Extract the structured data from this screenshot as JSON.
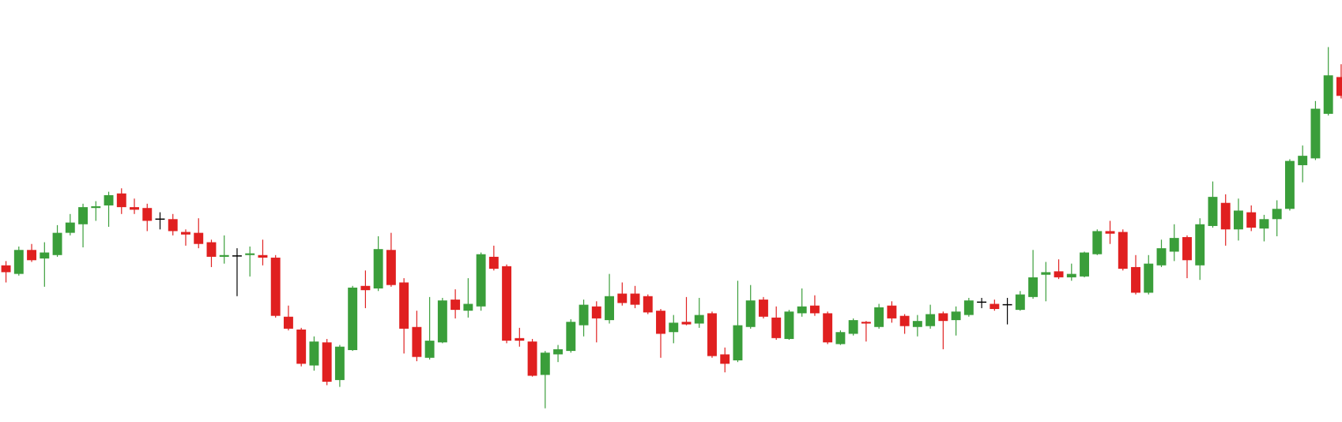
{
  "chart_data": {
    "type": "candlestick",
    "up_color": "#3a9e3a",
    "down_color": "#e02020",
    "flat_color": "#000000",
    "ylim": [
      0,
      493
    ],
    "open": [
      183,
      173,
      201,
      191,
      195,
      221,
      231,
      250,
      253,
      267,
      251,
      250,
      237,
      237,
      222,
      221,
      210,
      193,
      194,
      195,
      195,
      192,
      123,
      108,
      66,
      93,
      49,
      84,
      159,
      156,
      201,
      163,
      111,
      75,
      93,
      143,
      130,
      135,
      193,
      182,
      98,
      94,
      55,
      79,
      83,
      113,
      135,
      119,
      150,
      150,
      147,
      130,
      105,
      117,
      115,
      127,
      79,
      72,
      111,
      143,
      122,
      97,
      127,
      136,
      127,
      91,
      103,
      117,
      111,
      136,
      124,
      111,
      112,
      127,
      119,
      125,
      140,
      138,
      137,
      131,
      146,
      172,
      176,
      169,
      170,
      196,
      223,
      222,
      181,
      151,
      183,
      199,
      216,
      183,
      229,
      256,
      225,
      245,
      226,
      237,
      249,
      300,
      308,
      360,
      403
    ],
    "high": [
      188,
      205,
      208,
      210,
      230,
      243,
      255,
      258,
      269,
      273,
      261,
      255,
      245,
      243,
      225,
      238,
      213,
      218,
      203,
      205,
      213,
      195,
      136,
      110,
      100,
      97,
      90,
      159,
      177,
      217,
      221,
      168,
      130,
      146,
      145,
      155,
      168,
      198,
      206,
      184,
      110,
      97,
      83,
      90,
      120,
      143,
      141,
      173,
      163,
      159,
      149,
      132,
      125,
      146,
      145,
      129,
      87,
      165,
      160,
      146,
      135,
      131,
      156,
      148,
      129,
      107,
      121,
      118,
      138,
      141,
      126,
      125,
      137,
      129,
      135,
      145,
      145,
      143,
      145,
      153,
      201,
      187,
      190,
      185,
      199,
      225,
      235,
      225,
      195,
      195,
      213,
      231,
      218,
      238,
      281,
      266,
      261,
      253,
      242,
      259,
      307,
      323,
      375,
      438,
      418
    ],
    "low": [
      163,
      171,
      187,
      158,
      193,
      218,
      204,
      235,
      228,
      243,
      243,
      223,
      225,
      218,
      206,
      203,
      181,
      185,
      147,
      170,
      183,
      122,
      107,
      65,
      60,
      43,
      41,
      83,
      133,
      153,
      158,
      80,
      71,
      73,
      92,
      121,
      122,
      130,
      177,
      92,
      88,
      53,
      16,
      70,
      81,
      100,
      93,
      115,
      136,
      133,
      126,
      75,
      92,
      113,
      110,
      75,
      58,
      70,
      109,
      121,
      96,
      96,
      123,
      124,
      91,
      90,
      101,
      94,
      109,
      116,
      103,
      100,
      109,
      85,
      101,
      123,
      133,
      130,
      114,
      130,
      144,
      141,
      167,
      165,
      169,
      195,
      208,
      177,
      149,
      149,
      181,
      188,
      168,
      166,
      227,
      206,
      212,
      223,
      211,
      217,
      247,
      280,
      306,
      358,
      378
    ],
    "close": [
      175,
      201,
      189,
      198,
      221,
      233,
      251,
      252,
      265,
      251,
      248,
      235,
      237,
      223,
      219,
      208,
      193,
      195,
      194,
      197,
      192,
      124,
      109,
      68,
      94,
      47,
      88,
      157,
      154,
      202,
      160,
      109,
      76,
      95,
      142,
      131,
      138,
      196,
      179,
      95,
      95,
      54,
      81,
      85,
      117,
      137,
      121,
      147,
      139,
      137,
      128,
      103,
      116,
      114,
      125,
      77,
      68,
      113,
      142,
      123,
      98,
      129,
      135,
      127,
      93,
      105,
      119,
      115,
      134,
      121,
      112,
      118,
      126,
      118,
      129,
      142,
      140,
      132,
      137,
      149,
      169,
      175,
      169,
      173,
      198,
      223,
      220,
      179,
      151,
      185,
      203,
      215,
      189,
      231,
      263,
      225,
      247,
      227,
      237,
      249,
      305,
      311,
      366,
      405,
      381
    ]
  }
}
